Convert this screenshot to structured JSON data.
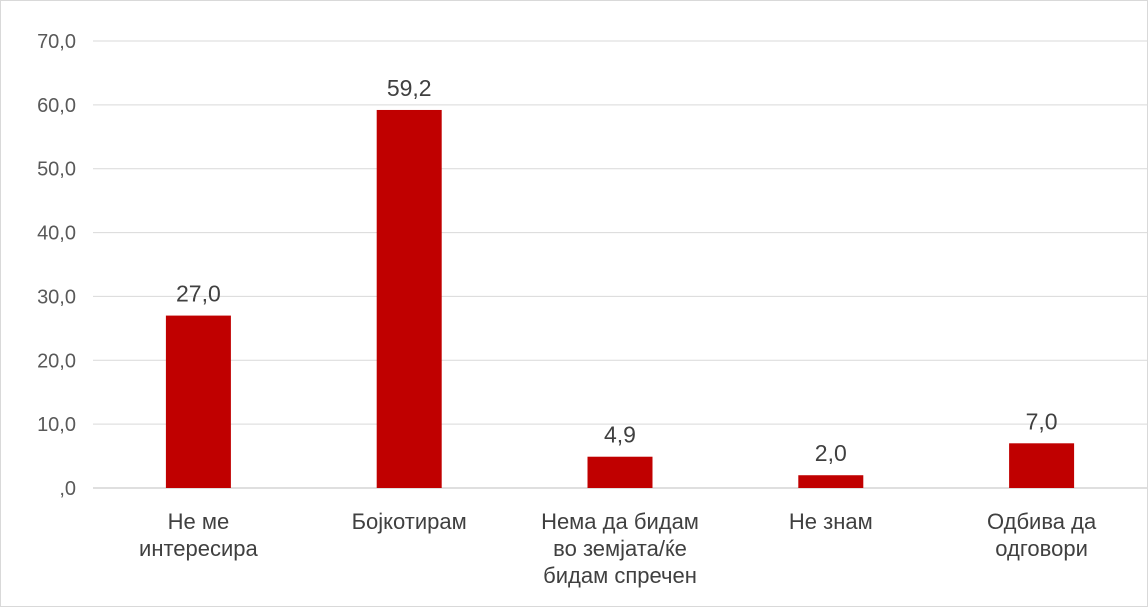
{
  "chart_data": {
    "type": "bar",
    "title": "",
    "xlabel": "",
    "ylabel": "",
    "ylim": [
      0,
      70
    ],
    "yticks": [
      0,
      10,
      20,
      30,
      40,
      50,
      60,
      70
    ],
    "ytick_labels": [
      ",0",
      "10,0",
      "20,0",
      "30,0",
      "40,0",
      "50,0",
      "60,0",
      "70,0"
    ],
    "categories": [
      [
        "Не ме",
        "интересира"
      ],
      [
        "Бојкотирам"
      ],
      [
        "Нема да бидам",
        "во земјата/ќе",
        "бидам спречен"
      ],
      [
        "Не знам"
      ],
      [
        "Одбива да",
        "одговори"
      ]
    ],
    "values": [
      27.0,
      59.2,
      4.9,
      2.0,
      7.0
    ],
    "data_labels": [
      "27,0",
      "59,2",
      "4,9",
      "2,0",
      "7,0"
    ],
    "bar_color": "#c00000",
    "gridlines": true,
    "legend": "none"
  }
}
